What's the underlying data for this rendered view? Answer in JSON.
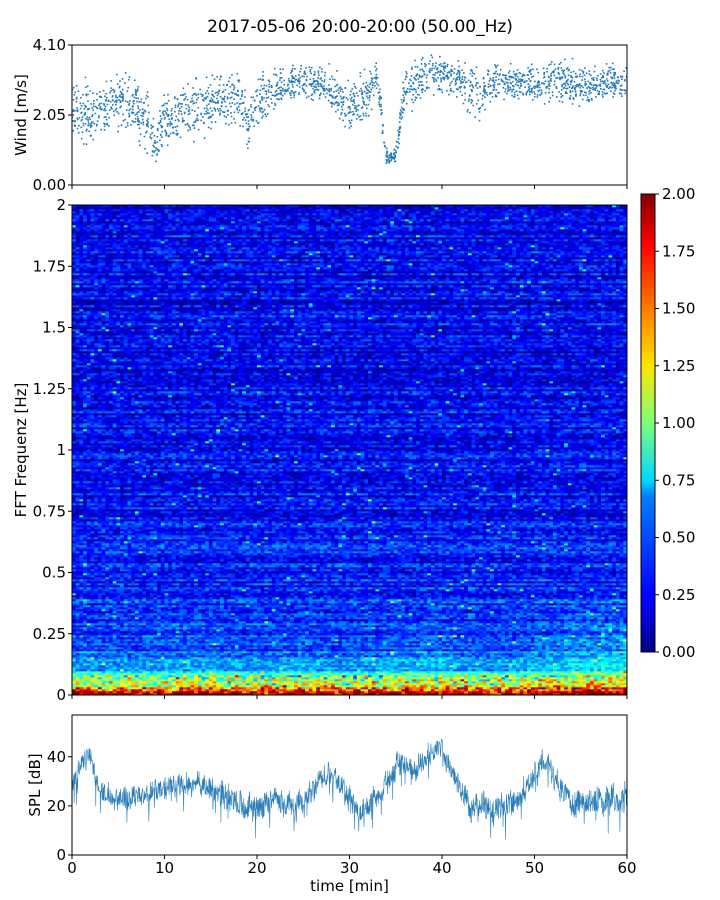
{
  "title": "2017-05-06 20:00-20:00 (50.00_Hz)",
  "chart_data": [
    {
      "id": "wind",
      "type": "scatter",
      "ylabel": "Wind [m/s]",
      "xlim": [
        0,
        60
      ],
      "ylim": [
        0,
        4.1
      ],
      "y_ticks": [
        0,
        2.05,
        4.1
      ],
      "y_tick_labels": [
        "0.00",
        "2.05",
        "4.10"
      ],
      "color": "#1f77b4",
      "profile": {
        "x": [
          0,
          2,
          4,
          6,
          8,
          9,
          10,
          12,
          14,
          16,
          18,
          19,
          20,
          22,
          24,
          26,
          28,
          30,
          32,
          33,
          34,
          35,
          36,
          38,
          40,
          42,
          44,
          46,
          48,
          50,
          52,
          54,
          56,
          58,
          60
        ],
        "center": [
          2.3,
          2.0,
          2.3,
          2.5,
          2.0,
          1.1,
          1.9,
          2.1,
          2.3,
          2.4,
          2.6,
          1.8,
          2.3,
          2.8,
          3.0,
          3.0,
          2.8,
          2.2,
          2.7,
          3.2,
          0.8,
          0.9,
          2.8,
          3.1,
          3.3,
          3.0,
          2.6,
          3.1,
          3.0,
          3.0,
          3.1,
          3.0,
          2.9,
          3.0,
          3.0
        ],
        "spread": [
          0.7,
          0.8,
          0.7,
          0.6,
          0.8,
          0.5,
          0.6,
          0.7,
          0.7,
          0.6,
          0.6,
          0.6,
          0.6,
          0.5,
          0.4,
          0.4,
          0.5,
          0.6,
          0.5,
          0.4,
          0.2,
          0.2,
          0.5,
          0.5,
          0.5,
          0.5,
          0.6,
          0.4,
          0.4,
          0.4,
          0.5,
          0.5,
          0.5,
          0.4,
          0.4
        ]
      }
    },
    {
      "id": "spectrogram",
      "type": "heatmap",
      "ylabel": "FFT Frequenz [Hz]",
      "xlim": [
        0,
        60
      ],
      "ylim": [
        0,
        2
      ],
      "y_ticks": [
        0,
        0.25,
        0.5,
        0.75,
        1,
        1.25,
        1.5,
        1.75,
        2
      ],
      "y_tick_labels": [
        "0",
        "0.25",
        "0.5",
        "0.75",
        "1",
        "1.25",
        "1.5",
        "1.75",
        "2"
      ],
      "colormap": "jet",
      "colorbar": {
        "range": [
          0,
          2
        ],
        "ticks": [
          0,
          0.25,
          0.5,
          0.75,
          1,
          1.25,
          1.5,
          1.75,
          2
        ],
        "tick_labels": [
          "0.00",
          "0.25",
          "0.50",
          "0.75",
          "1.00",
          "1.25",
          "1.50",
          "1.75",
          "2.00"
        ]
      },
      "freq_profile": {
        "f": [
          0.0,
          0.02,
          0.04,
          0.06,
          0.08,
          0.1,
          0.15,
          0.25,
          0.5,
          1.0,
          1.5,
          2.0
        ],
        "level": [
          1.9,
          1.6,
          1.2,
          0.95,
          0.8,
          0.6,
          0.42,
          0.35,
          0.3,
          0.25,
          0.24,
          0.23
        ]
      },
      "time_profile": {
        "t": [
          0,
          5,
          10,
          15,
          20,
          25,
          30,
          35,
          40,
          45,
          50,
          55,
          60
        ],
        "boost": [
          0.05,
          0.0,
          0.05,
          0.05,
          0.0,
          0.05,
          0.0,
          0.05,
          0.1,
          0.0,
          0.1,
          0.2,
          0.25
        ]
      }
    },
    {
      "id": "spl",
      "type": "line",
      "ylabel": "SPL [dB]",
      "xlabel": "time [min]",
      "xlim": [
        0,
        60
      ],
      "ylim": [
        0,
        57
      ],
      "x_ticks": [
        0,
        10,
        20,
        30,
        40,
        50,
        60
      ],
      "x_tick_labels": [
        "0",
        "10",
        "20",
        "30",
        "40",
        "50",
        "60"
      ],
      "y_ticks": [
        0,
        20,
        40
      ],
      "y_tick_labels": [
        "0",
        "20",
        "40"
      ],
      "color": "#1f77b4",
      "profile": {
        "x": [
          0,
          1,
          2,
          3,
          5,
          8,
          12,
          15,
          18,
          20,
          22,
          24,
          26,
          27.5,
          29,
          31,
          33,
          35,
          36,
          37,
          38,
          39.5,
          41,
          43,
          46,
          49,
          51,
          53,
          55,
          58,
          60
        ],
        "mean": [
          28,
          37,
          40,
          26,
          23,
          25,
          29,
          28,
          20,
          19,
          23,
          18,
          26,
          34,
          30,
          17,
          25,
          35,
          36,
          34,
          38,
          45,
          35,
          20,
          18,
          26,
          40,
          25,
          21,
          23,
          24
        ],
        "noise": [
          5,
          5,
          5,
          5,
          5,
          5,
          5,
          5,
          6,
          6,
          5,
          6,
          5,
          5,
          5,
          5,
          5,
          5,
          5,
          5,
          5,
          5,
          5,
          6,
          6,
          5,
          5,
          6,
          6,
          6,
          6
        ]
      }
    }
  ]
}
